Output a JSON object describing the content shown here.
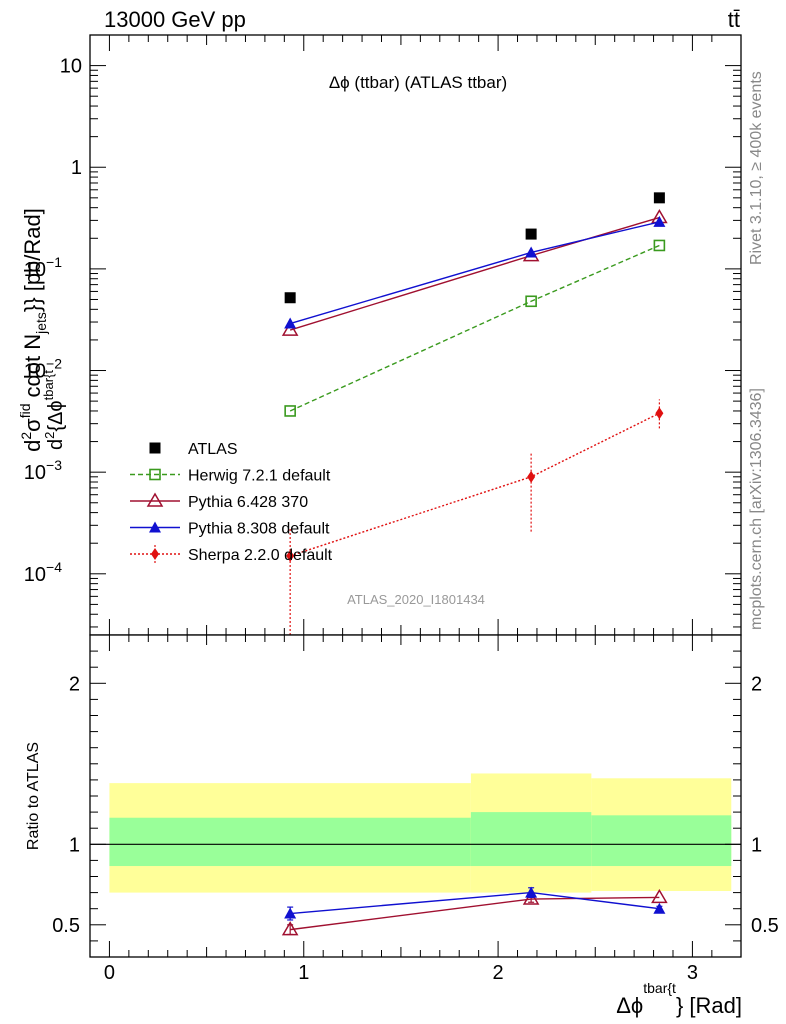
{
  "header": {
    "left": "13000 GeV pp",
    "right": "tt̄"
  },
  "side_labels": {
    "rivet": "Rivet 3.1.10, ≥ 400k events",
    "mcplots": "mcplots.cern.ch [arXiv:1306.3436]"
  },
  "colors": {
    "atlas": "#000000",
    "herwig": "#3a9a1e",
    "pythia6": "#a01030",
    "pythia8": "#1010d0",
    "sherpa": "#e01010",
    "band_inner": "#99ff99",
    "band_outer": "#ffff99"
  },
  "chart_data": [
    {
      "type": "scatter",
      "title": "Δϕ (ttbar) (ATLAS ttbar)",
      "analysis_label": "ATLAS_2020_I1801434",
      "ylabel": "d²σ^fid / d²{Δϕ^tbar{t}} cdot N_jets}} [pb/Rad]",
      "ylabel_parts": {
        "num": "d",
        "num_sup": "2",
        "sigma": "σ",
        "sigma_sup": "fid",
        "den_d": "d",
        "den_sup": "2",
        "den_rest": "{Δϕ",
        "den_phi_sup": "tbar{t",
        "mid": "cdot N",
        "mid_sub": "jets",
        "tail": "}} [pb/Rad]"
      },
      "yscale": "log",
      "ylim": [
        2.5e-05,
        20
      ],
      "xlim": [
        -0.1,
        3.25
      ],
      "yticks": [
        {
          "v": 0.0001,
          "base": "10",
          "exp": "−4"
        },
        {
          "v": 0.001,
          "base": "10",
          "exp": "−3"
        },
        {
          "v": 0.01,
          "base": "10",
          "exp": "−2"
        },
        {
          "v": 0.1,
          "base": "10",
          "exp": "−1"
        },
        {
          "v": 1,
          "base": "1",
          "exp": ""
        },
        {
          "v": 10,
          "base": "10",
          "exp": ""
        }
      ],
      "legend_position": "lower-left",
      "series": [
        {
          "name": "ATLAS",
          "marker": "square-filled",
          "line": "none",
          "color": "#000000",
          "x": [
            0.93,
            2.17,
            2.83
          ],
          "y": [
            0.052,
            0.22,
            0.5
          ],
          "yerr_lo": [
            0,
            0,
            0
          ],
          "yerr_hi": [
            0,
            0,
            0
          ]
        },
        {
          "name": "Herwig 7.2.1 default",
          "marker": "square-open",
          "line": "dashed",
          "color": "#3a9a1e",
          "x": [
            0.93,
            2.17,
            2.83
          ],
          "y": [
            0.004,
            0.048,
            0.17
          ],
          "yerr_lo": [
            0,
            0,
            0
          ],
          "yerr_hi": [
            0,
            0,
            0
          ]
        },
        {
          "name": "Pythia 6.428 370",
          "marker": "triangle-open",
          "line": "solid",
          "color": "#a01030",
          "x": [
            0.93,
            2.17,
            2.83
          ],
          "y": [
            0.025,
            0.135,
            0.32
          ],
          "yerr_lo": [
            0,
            0,
            0
          ],
          "yerr_hi": [
            0,
            0,
            0
          ]
        },
        {
          "name": "Pythia 8.308 default",
          "marker": "triangle-filled",
          "line": "solid",
          "color": "#1010d0",
          "x": [
            0.93,
            2.17,
            2.83
          ],
          "y": [
            0.029,
            0.145,
            0.29
          ],
          "yerr_lo": [
            0,
            0,
            0
          ],
          "yerr_hi": [
            0,
            0,
            0
          ]
        },
        {
          "name": "Sherpa 2.2.0 default",
          "marker": "diamond-filled",
          "line": "dotted",
          "color": "#e01010",
          "x": [
            0.93,
            2.17,
            2.83
          ],
          "y": [
            0.00015,
            0.0009,
            0.0038
          ],
          "yerr_lo": [
            0.00013,
            0.00064,
            0.0011
          ],
          "yerr_hi": [
            0.00013,
            0.00065,
            0.0014
          ]
        }
      ]
    },
    {
      "type": "scatter",
      "ylabel": "Ratio to ATLAS",
      "xlabel": "Δϕ",
      "xlabel_sup": "tbar{t",
      "xlabel_tail": "} [Rad]",
      "ylim": [
        0.3,
        2.3
      ],
      "xlim": [
        -0.1,
        3.25
      ],
      "yticks": [
        0.5,
        1,
        2
      ],
      "xticks": [
        0,
        1,
        2,
        3
      ],
      "reference_line": 1,
      "bands": [
        {
          "x0": 0,
          "x1": 1.86,
          "inner_lo": 0.865,
          "inner_hi": 1.165,
          "outer_lo": 0.7,
          "outer_hi": 1.38
        },
        {
          "x0": 1.86,
          "x1": 2.48,
          "inner_lo": 0.865,
          "inner_hi": 1.2,
          "outer_lo": 0.7,
          "outer_hi": 1.44
        },
        {
          "x0": 2.48,
          "x1": 3.2,
          "inner_lo": 0.865,
          "inner_hi": 1.18,
          "outer_lo": 0.71,
          "outer_hi": 1.41
        }
      ],
      "series": [
        {
          "name": "Pythia 6.428 370",
          "marker": "triangle-open",
          "line": "solid",
          "color": "#a01030",
          "x": [
            0.93,
            2.17,
            2.83
          ],
          "y": [
            0.47,
            0.66,
            0.67
          ],
          "yerr_lo": [
            0.03,
            0.02,
            0.0
          ],
          "yerr_hi": [
            0.03,
            0.02,
            0.0
          ]
        },
        {
          "name": "Pythia 8.308 default",
          "marker": "triangle-filled",
          "line": "solid",
          "color": "#1010d0",
          "x": [
            0.93,
            2.17,
            2.83
          ],
          "y": [
            0.57,
            0.7,
            0.6
          ],
          "yerr_lo": [
            0.04,
            0.03,
            0.015
          ],
          "yerr_hi": [
            0.04,
            0.03,
            0.015
          ]
        }
      ]
    }
  ]
}
